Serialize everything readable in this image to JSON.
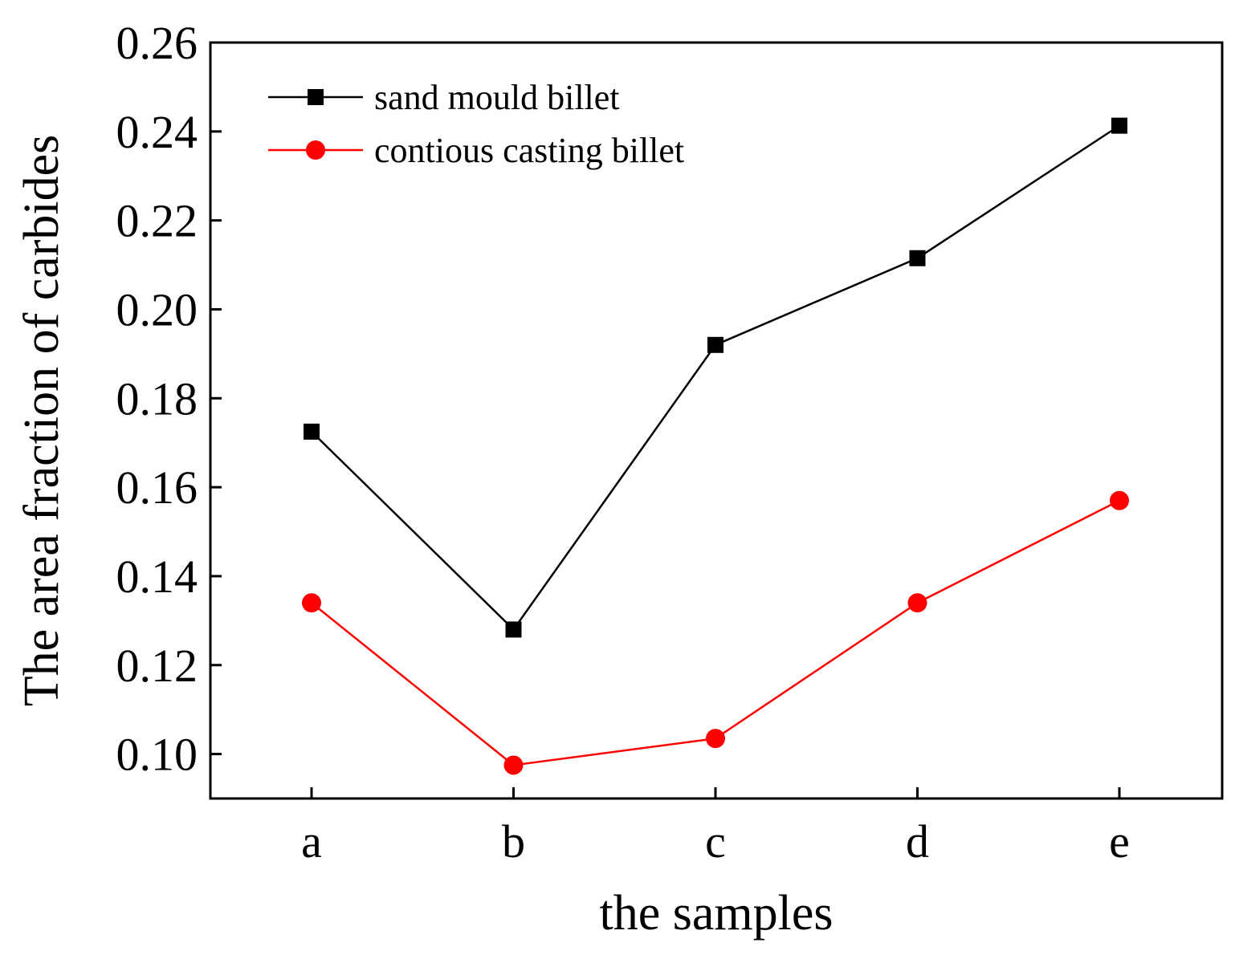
{
  "chart_data": {
    "type": "line",
    "title": "",
    "xlabel": "the samples",
    "ylabel": "The area fraction of carbides",
    "categories": [
      "a",
      "b",
      "c",
      "d",
      "e"
    ],
    "ylim": [
      0.09,
      0.26
    ],
    "yticks": [
      0.1,
      0.12,
      0.14,
      0.16,
      0.18,
      0.2,
      0.22,
      0.24,
      0.26
    ],
    "ytick_labels": [
      "0.10",
      "0.12",
      "0.14",
      "0.16",
      "0.18",
      "0.20",
      "0.22",
      "0.24",
      "0.26"
    ],
    "grid": false,
    "legend_position": "top-left",
    "series": [
      {
        "name": "sand mould billet",
        "color": "#000000",
        "marker": "square",
        "values": [
          0.1725,
          0.128,
          0.192,
          0.2115,
          0.2413
        ]
      },
      {
        "name": "contious casting billet",
        "color": "#ff0000",
        "marker": "circle",
        "values": [
          0.134,
          0.0975,
          0.1035,
          0.134,
          0.157
        ]
      }
    ]
  }
}
